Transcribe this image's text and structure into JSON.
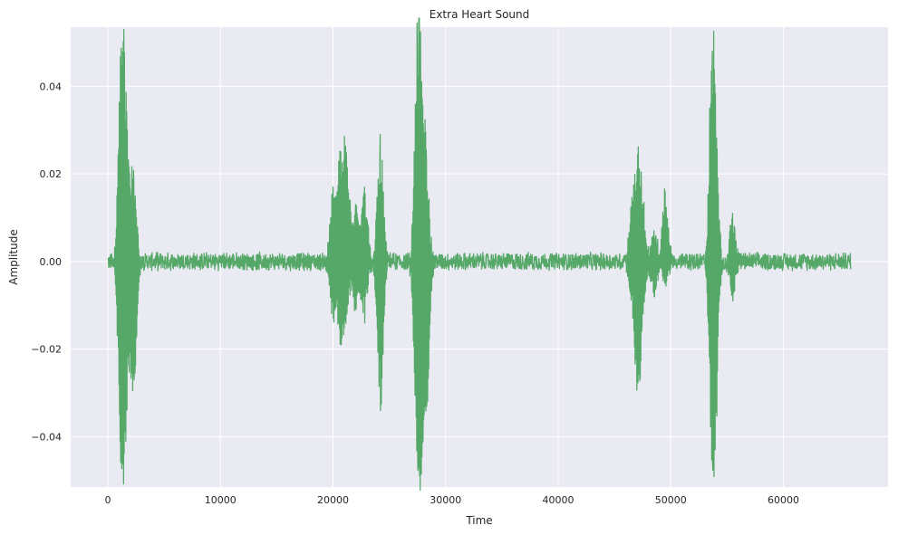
{
  "chart_data": {
    "type": "line",
    "title": "Extra Heart Sound",
    "xlabel": "Time",
    "ylabel": "Amplitude",
    "xlim": [
      -3300,
      69300
    ],
    "ylim": [
      -0.0515,
      0.0535
    ],
    "xticks": [
      0,
      10000,
      20000,
      30000,
      40000,
      50000,
      60000
    ],
    "xtick_labels": [
      "0",
      "10000",
      "20000",
      "30000",
      "40000",
      "50000",
      "60000"
    ],
    "yticks": [
      -0.04,
      -0.02,
      0.0,
      0.02,
      0.04
    ],
    "ytick_labels": [
      "−0.04",
      "−0.02",
      "0.00",
      "0.02",
      "0.04"
    ],
    "grid": true,
    "legend": "none",
    "colors": {
      "line": "#55a868",
      "plot_background": "#eaeaf2",
      "grid": "#ffffff"
    },
    "series": [
      {
        "x_start": 0,
        "x_end": 66000,
        "baseline_noise_amplitude": 0.0022,
        "bursts": [
          {
            "x": 1200,
            "peak": 0.0487,
            "trough": -0.0445
          },
          {
            "x": 1500,
            "peak": 0.031,
            "trough": -0.031
          },
          {
            "x": 2000,
            "peak": 0.009,
            "trough": -0.011
          },
          {
            "x": 2300,
            "peak": 0.018,
            "trough": -0.027
          },
          {
            "x": 20000,
            "peak": 0.017,
            "trough": -0.013
          },
          {
            "x": 20700,
            "peak": 0.025,
            "trough": -0.019
          },
          {
            "x": 21200,
            "peak": 0.024,
            "trough": -0.012
          },
          {
            "x": 22000,
            "peak": 0.013,
            "trough": -0.011
          },
          {
            "x": 22800,
            "peak": 0.017,
            "trough": -0.014
          },
          {
            "x": 24200,
            "peak": 0.029,
            "trough": -0.034
          },
          {
            "x": 27500,
            "peak": 0.047,
            "trough": -0.0435
          },
          {
            "x": 27800,
            "peak": 0.035,
            "trough": -0.03
          },
          {
            "x": 28300,
            "peak": 0.023,
            "trough": -0.033
          },
          {
            "x": 46500,
            "peak": 0.01,
            "trough": -0.007
          },
          {
            "x": 47000,
            "peak": 0.021,
            "trough": -0.026
          },
          {
            "x": 47400,
            "peak": 0.017,
            "trough": -0.016
          },
          {
            "x": 48500,
            "peak": 0.007,
            "trough": -0.008
          },
          {
            "x": 49500,
            "peak": 0.016,
            "trough": -0.005
          },
          {
            "x": 53700,
            "peak": 0.048,
            "trough": -0.046
          },
          {
            "x": 54000,
            "peak": 0.02,
            "trough": -0.022
          },
          {
            "x": 55500,
            "peak": 0.011,
            "trough": -0.009
          }
        ]
      }
    ]
  }
}
